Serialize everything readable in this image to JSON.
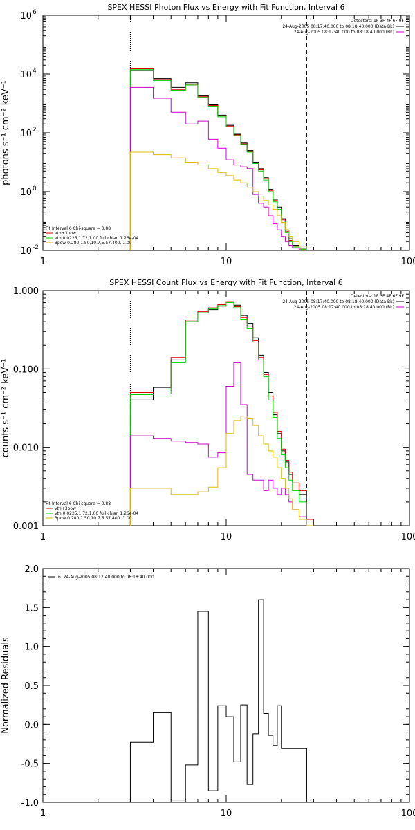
{
  "chart_data": [
    {
      "type": "line",
      "title": "SPEX HESSI Photon Flux vs Energy with Fit Function, Interval 6",
      "xlabel": "",
      "ylabel": "photons s⁻¹ cm⁻² keV⁻¹",
      "xscale": "log",
      "yscale": "log",
      "xlim": [
        1,
        100
      ],
      "ylim": [
        0.01,
        1000000
      ],
      "xticks": [
        {
          "v": 1,
          "label": "1"
        },
        {
          "v": 10,
          "label": "10"
        },
        {
          "v": 100,
          "label": "100"
        }
      ],
      "yticks": [
        {
          "v": 0.01,
          "label": "10",
          "sup": "-2"
        },
        {
          "v": 1,
          "label": "10",
          "sup": "0"
        },
        {
          "v": 100,
          "label": "10",
          "sup": "2"
        },
        {
          "v": 10000,
          "label": "10",
          "sup": "4"
        },
        {
          "v": 1000000,
          "label": "10",
          "sup": "6"
        }
      ],
      "vlines": [
        {
          "x": 3,
          "style": "dotted"
        },
        {
          "x": 27.5,
          "style": "dashed"
        }
      ],
      "legend_top": {
        "position": "top-right",
        "header": "Detectors: 1F 3F 4F 6F 9F",
        "entries": [
          {
            "text": "24-Aug-2005 08:17:40.000 to 08:18:40.000 (Data-Bk)",
            "color": "#000000"
          },
          {
            "text": "24-Aug-2005 08:17:40.000 to 08:18:40.000 (Bk)",
            "color": "#cc00cc"
          }
        ]
      },
      "legend_bottom": {
        "position": "bottom-left",
        "header": "Fit Interval  6    Chi-square = 0.88",
        "entries": [
          {
            "text": "vth+3pow",
            "color": "#dd0000"
          },
          {
            "text": "vth 0.0225,1.72,1.00  full chian 1.26e-04",
            "color": "#00cc00"
          },
          {
            "text": "3pow 0.280,1.50,10.7,5.57,400.,1.00",
            "color": "#ddbb00"
          }
        ]
      },
      "edges": [
        3,
        4,
        5,
        6,
        7,
        8,
        9,
        10,
        11,
        12,
        13,
        14,
        15,
        16,
        17,
        18,
        19,
        20,
        21,
        22,
        23,
        25,
        27.5,
        30
      ],
      "series": [
        {
          "name": "Data-Bk",
          "color": "#000000",
          "values": [
            13000,
            7000,
            3500,
            5000,
            1800,
            900,
            400,
            180,
            90,
            45,
            25,
            10,
            6,
            3,
            1.2,
            0.55,
            0.3,
            0.12,
            0.05,
            0.025,
            0.015,
            0.012,
            0.01
          ]
        },
        {
          "name": "vth+3pow",
          "color": "#dd0000",
          "values": [
            15000,
            6500,
            3000,
            4500,
            1700,
            850,
            380,
            170,
            85,
            42,
            23,
            9.5,
            5.5,
            2.8,
            1.1,
            0.5,
            0.28,
            0.11,
            0.045,
            0.022,
            0.014,
            0.011,
            0.01
          ]
        },
        {
          "name": "vth",
          "color": "#00cc00",
          "values": [
            14000,
            6000,
            2800,
            4200,
            1600,
            800,
            350,
            160,
            80,
            40,
            22,
            9,
            5,
            2.5,
            1,
            0.45,
            0.25,
            0.1,
            0.04,
            0.02,
            0.013,
            0.011,
            0.01
          ]
        },
        {
          "name": "Bk",
          "color": "#cc00cc",
          "values": [
            3500,
            1500,
            500,
            200,
            250,
            60,
            30,
            12,
            8,
            7,
            6,
            0.8,
            0.4,
            0.3,
            0.15,
            0.08,
            0.05,
            0.03,
            0.02,
            0.015,
            0.012,
            0.01,
            0.01
          ]
        },
        {
          "name": "3pow",
          "color": "#ddbb00",
          "values": [
            22,
            18,
            14,
            10,
            8,
            6,
            4.5,
            3.5,
            2.5,
            2,
            1.4,
            1,
            0.7,
            0.5,
            0.35,
            0.25,
            0.15,
            0.09,
            0.05,
            0.03,
            0.02,
            0.014,
            0.01
          ]
        }
      ]
    },
    {
      "type": "line",
      "title": "SPEX HESSI Count Flux vs Energy with Fit Function, Interval 6",
      "xlabel": "",
      "ylabel": "counts s⁻¹ cm⁻² keV⁻¹",
      "xscale": "log",
      "yscale": "log",
      "xlim": [
        1,
        100
      ],
      "ylim": [
        0.001,
        1
      ],
      "xticks": [
        {
          "v": 1,
          "label": "1"
        },
        {
          "v": 10,
          "label": "10"
        },
        {
          "v": 100,
          "label": "100"
        }
      ],
      "yticks": [
        {
          "v": 0.001,
          "label": "0.001"
        },
        {
          "v": 0.01,
          "label": "0.010"
        },
        {
          "v": 0.1,
          "label": "0.100"
        },
        {
          "v": 1,
          "label": "1.000"
        }
      ],
      "vlines": [
        {
          "x": 3,
          "style": "dotted"
        },
        {
          "x": 27.5,
          "style": "dashed"
        }
      ],
      "legend_top": {
        "position": "top-right",
        "header": "Detectors: 1F 3F 4F 6F 9F",
        "entries": [
          {
            "text": "24-Aug-2005 08:17:40.000 to 08:18:40.000 (Data-Bk)",
            "color": "#000000"
          },
          {
            "text": "24-Aug-2005 08:17:40.000 to 08:18:40.000 (Bk)",
            "color": "#cc00cc"
          }
        ]
      },
      "legend_bottom": {
        "position": "bottom-left",
        "header": "Fit Interval  6    Chi-square = 0.88",
        "entries": [
          {
            "text": "vth+3pow",
            "color": "#dd0000"
          },
          {
            "text": "vth 0.0225,1.72,1.00  full chian 1.26e-04",
            "color": "#00cc00"
          },
          {
            "text": "3pow 0.280,1.50,10.7,5.57,400.,1.00",
            "color": "#ddbb00"
          }
        ]
      },
      "edges": [
        3,
        4,
        5,
        6,
        7,
        8,
        9,
        10,
        11,
        12,
        13,
        14,
        15,
        16,
        17,
        18,
        19,
        20,
        21,
        22,
        23,
        25,
        27.5,
        30
      ],
      "series": [
        {
          "name": "Data-Bk",
          "color": "#000000",
          "values": [
            0.04,
            0.058,
            0.13,
            0.4,
            0.52,
            0.57,
            0.63,
            0.7,
            0.65,
            0.48,
            0.38,
            0.25,
            0.15,
            0.09,
            0.05,
            0.026,
            0.015,
            0.009,
            0.0065,
            0.0045,
            0.0035,
            0.0025,
            0.0012
          ]
        },
        {
          "name": "vth+3pow",
          "color": "#dd0000",
          "values": [
            0.05,
            0.052,
            0.14,
            0.42,
            0.54,
            0.6,
            0.66,
            0.72,
            0.62,
            0.45,
            0.35,
            0.23,
            0.14,
            0.085,
            0.045,
            0.028,
            0.016,
            0.0095,
            0.0068,
            0.0048,
            0.0035,
            0.0028,
            0.0012
          ]
        },
        {
          "name": "vth",
          "color": "#00cc00",
          "values": [
            0.047,
            0.048,
            0.12,
            0.4,
            0.52,
            0.58,
            0.64,
            0.7,
            0.6,
            0.43,
            0.33,
            0.22,
            0.13,
            0.08,
            0.04,
            0.024,
            0.013,
            0.008,
            0.0055,
            0.0038,
            0.0028,
            0.002,
            0.001
          ]
        },
        {
          "name": "Bk",
          "color": "#cc00cc",
          "values": [
            0.014,
            0.013,
            0.012,
            0.0115,
            0.011,
            0.0075,
            0.0085,
            0.06,
            0.12,
            0.035,
            0.0045,
            0.0038,
            0.0038,
            0.0028,
            0.0038,
            0.003,
            0.0025,
            0.003,
            0.0025,
            0.002,
            0.0016,
            0.0013,
            0.001
          ]
        },
        {
          "name": "3pow",
          "color": "#ddbb00",
          "values": [
            0.003,
            0.003,
            0.0025,
            0.0025,
            0.0027,
            0.0031,
            0.0055,
            0.015,
            0.022,
            0.025,
            0.023,
            0.019,
            0.014,
            0.011,
            0.009,
            0.0075,
            0.0055,
            0.004,
            0.003,
            0.0022,
            0.0016,
            0.0012,
            0.001
          ]
        }
      ]
    },
    {
      "type": "line",
      "title": "",
      "xlabel": "",
      "ylabel": "Normalized Residuals",
      "xscale": "log",
      "yscale": "linear",
      "xlim": [
        1,
        100
      ],
      "ylim": [
        -1.0,
        2.0
      ],
      "xticks": [
        {
          "v": 1,
          "label": "1"
        },
        {
          "v": 10,
          "label": "10"
        },
        {
          "v": 100,
          "label": "100"
        }
      ],
      "yticks": [
        {
          "v": -1.0,
          "label": "-1.0"
        },
        {
          "v": -0.5,
          "label": "-0.5"
        },
        {
          "v": 0.0,
          "label": "0.0"
        },
        {
          "v": 0.5,
          "label": "0.5"
        },
        {
          "v": 1.0,
          "label": "1.0"
        },
        {
          "v": 1.5,
          "label": "1.5"
        },
        {
          "v": 2.0,
          "label": "2.0"
        }
      ],
      "vlines": [],
      "legend_top": {
        "position": "top-left",
        "header": "",
        "entries": [
          {
            "text": "6. 24-Aug-2005 08:17:40.000 to 08:18:40.000",
            "color": "#000000"
          }
        ]
      },
      "edges": [
        3,
        4,
        5,
        6,
        7,
        8,
        9,
        10,
        11,
        12,
        13,
        14,
        15,
        16,
        17,
        18,
        19,
        20,
        21,
        22,
        23,
        25,
        27.5
      ],
      "series": [
        {
          "name": "6. 24-Aug-2005 08:17:40.000 to 08:18:40.000",
          "color": "#000000",
          "values": [
            -0.23,
            0.15,
            -0.97,
            -0.52,
            1.45,
            -0.85,
            0.24,
            0.1,
            -0.48,
            0.25,
            -0.77,
            -0.12,
            1.6,
            0.14,
            -0.14,
            -0.27,
            0.24,
            -0.31,
            -0.31,
            -0.31,
            -0.31,
            -0.31
          ]
        }
      ]
    }
  ]
}
